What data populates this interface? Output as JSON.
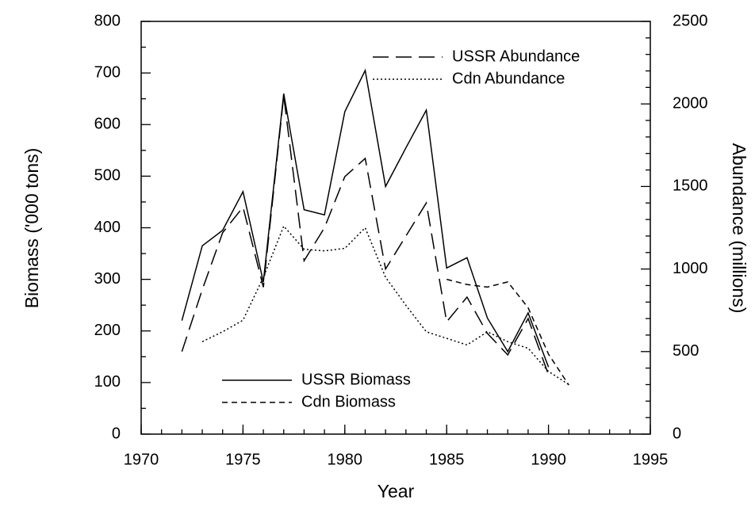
{
  "chart_data": {
    "type": "line",
    "xlabel": "Year",
    "ylabel": "Biomass ('000 tons)",
    "y2label": "Abundance (millions)",
    "x": [
      1972,
      1973,
      1974,
      1975,
      1976,
      1977,
      1978,
      1979,
      1980,
      1981,
      1982,
      1983,
      1984,
      1985,
      1986,
      1987,
      1988,
      1989,
      1990,
      1991
    ],
    "series": [
      {
        "name": "USSR Biomass",
        "color": "#000000",
        "dash": "none",
        "axis": "y",
        "values": [
          220,
          365,
          395,
          470,
          295,
          660,
          435,
          425,
          625,
          705,
          480,
          555,
          628,
          322,
          342,
          225,
          160,
          235,
          130,
          null
        ]
      },
      {
        "name": "Cdn Biomass",
        "color": "#000000",
        "dash": "7 5",
        "axis": "y",
        "values": [
          null,
          null,
          null,
          null,
          null,
          null,
          null,
          null,
          null,
          null,
          null,
          null,
          null,
          300,
          290,
          285,
          295,
          245,
          155,
          95
        ]
      },
      {
        "name": "USSR Abundance",
        "color": "#000000",
        "dash": "20 9",
        "axis": "y2",
        "values": [
          500,
          875,
          1220,
          1375,
          890,
          2050,
          1050,
          1250,
          1560,
          1670,
          1000,
          1200,
          1400,
          680,
          830,
          610,
          480,
          700,
          360,
          null
        ]
      },
      {
        "name": "Cdn Abundance",
        "color": "#000000",
        "dash": "2 3",
        "axis": "y2",
        "values": [
          null,
          560,
          620,
          690,
          950,
          1260,
          1120,
          1110,
          1125,
          1250,
          950,
          780,
          620,
          580,
          540,
          620,
          560,
          520,
          380,
          300
        ]
      }
    ],
    "xlim": [
      1970,
      1995
    ],
    "xticks": [
      1970,
      1975,
      1980,
      1985,
      1990,
      1995
    ],
    "ylim": [
      0,
      800
    ],
    "yticks": [
      0,
      100,
      200,
      300,
      400,
      500,
      600,
      700,
      800
    ],
    "y2lim": [
      0,
      2500
    ],
    "y2ticks": [
      0,
      500,
      1000,
      1500,
      2000,
      2500
    ],
    "legend": {
      "y": "lower left",
      "y2": "upper right"
    },
    "grid": false
  }
}
